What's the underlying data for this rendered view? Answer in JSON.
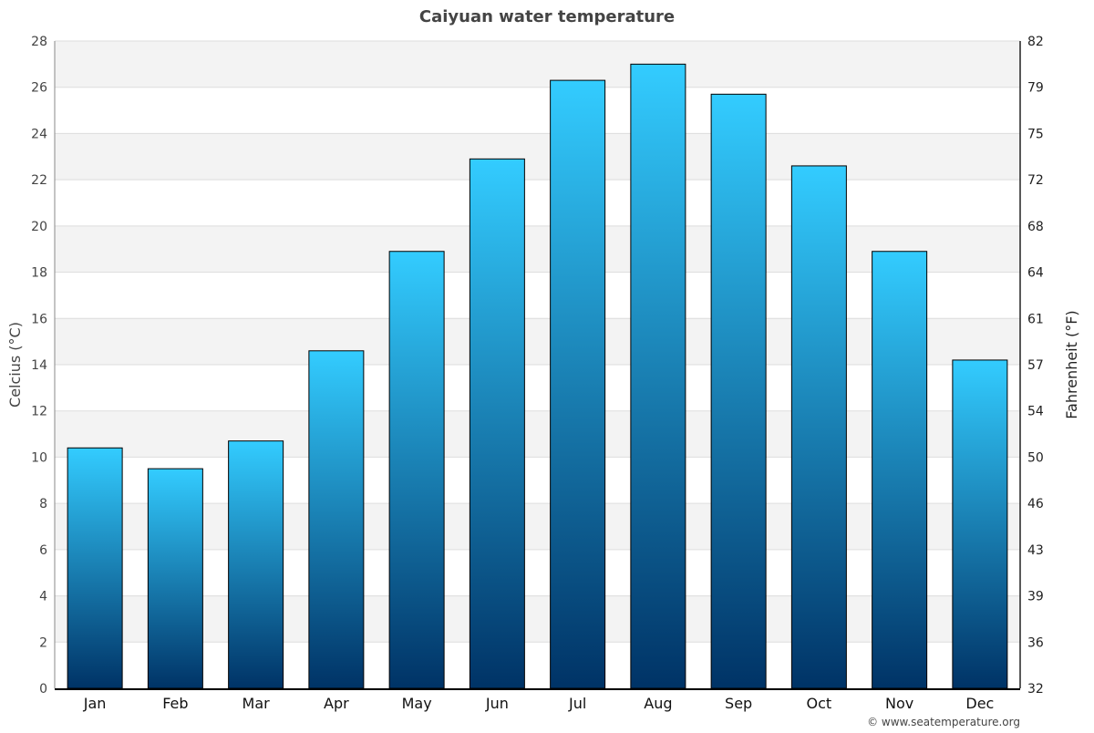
{
  "chart_data": {
    "type": "bar",
    "title": "Caiyuan water temperature",
    "ylabel": "Celcius (°C)",
    "ylabel_right": "Fahrenheit (°F)",
    "ylim": [
      0,
      28
    ],
    "yticks": [
      0,
      2,
      4,
      6,
      8,
      10,
      12,
      14,
      16,
      18,
      20,
      22,
      24,
      26,
      28
    ],
    "yticks_right": [
      "32",
      "36",
      "39",
      "43",
      "46",
      "50",
      "54",
      "57",
      "61",
      "64",
      "68",
      "72",
      "75",
      "79",
      "82"
    ],
    "categories": [
      "Jan",
      "Feb",
      "Mar",
      "Apr",
      "May",
      "Jun",
      "Jul",
      "Aug",
      "Sep",
      "Oct",
      "Nov",
      "Dec"
    ],
    "values": [
      10.4,
      9.5,
      10.7,
      14.6,
      18.9,
      22.9,
      26.3,
      27.0,
      25.7,
      22.6,
      18.9,
      14.2
    ],
    "grid": true,
    "colors": {
      "bar_top": "#33ccff",
      "bar_bottom": "#003366",
      "band": "#f3f3f3",
      "text": "#444444"
    }
  },
  "credit": "© www.seatemperature.org"
}
